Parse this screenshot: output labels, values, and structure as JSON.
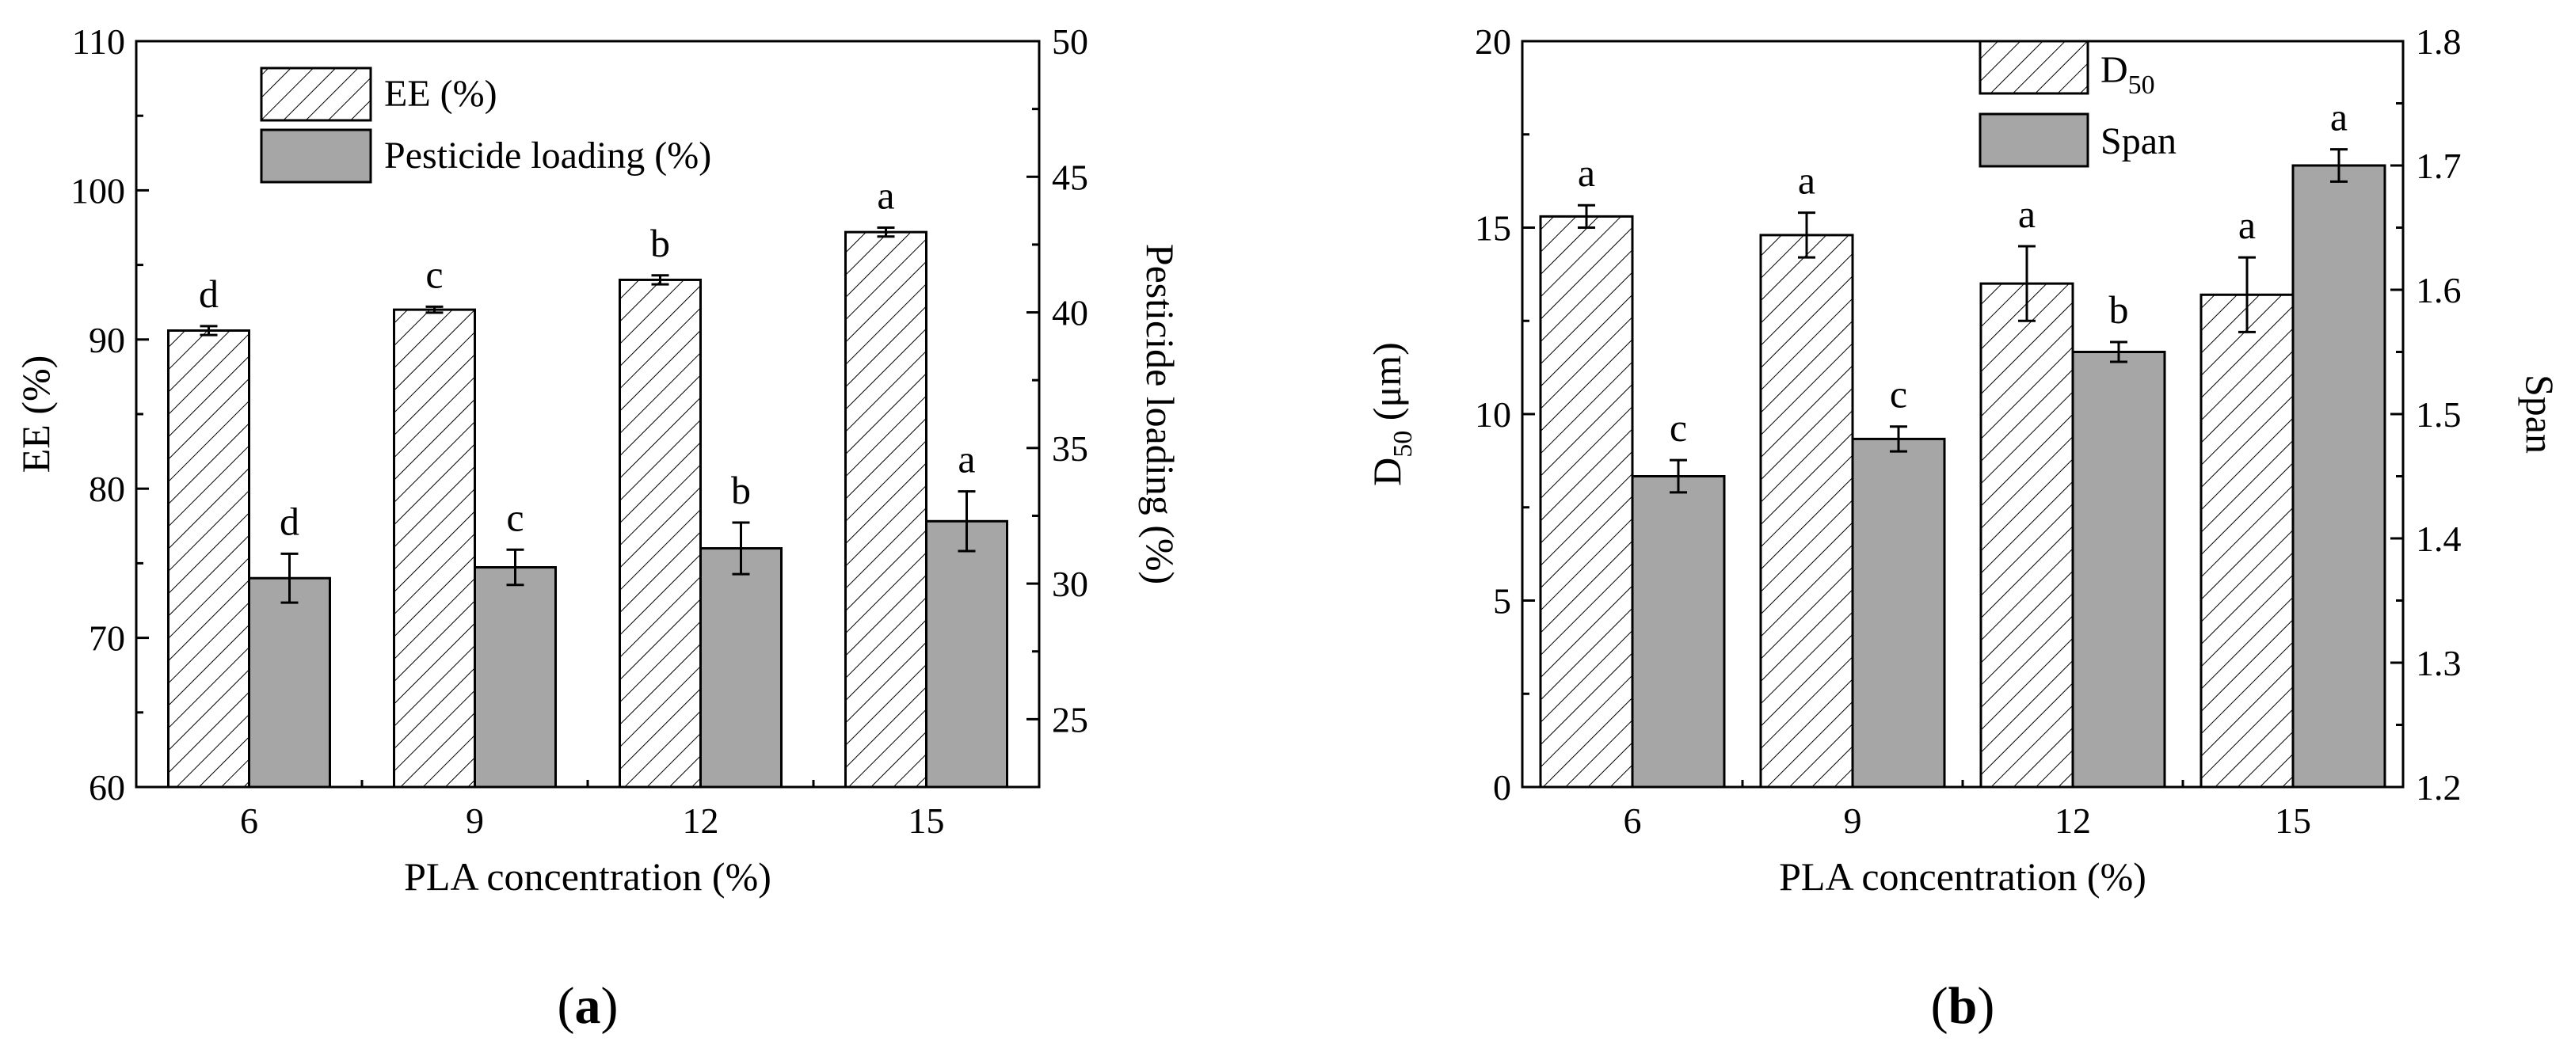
{
  "chart_data": [
    {
      "type": "bar",
      "panel_label": "a",
      "xlabel": "PLA concentration (%)",
      "categories": [
        "6",
        "9",
        "12",
        "15"
      ],
      "ylabel_left": "EE (%)",
      "ylabel_right": "Pesticide loading (%)",
      "ylim_left": [
        60,
        110
      ],
      "ylim_right": [
        22.5,
        50
      ],
      "yticks_left": [
        "60",
        "70",
        "80",
        "90",
        "100",
        "110"
      ],
      "yticks_right": [
        "25",
        "30",
        "35",
        "40",
        "45",
        "50"
      ],
      "legend_position": "top-left",
      "series": [
        {
          "name": "EE (%)",
          "axis": "left",
          "pattern": "hatched",
          "values": [
            90.6,
            92.0,
            94.0,
            97.2
          ],
          "errors": [
            0.3,
            0.2,
            0.3,
            0.3
          ],
          "labels": [
            "d",
            "c",
            "b",
            "a"
          ]
        },
        {
          "name": "Pesticide loading (%)",
          "axis": "right",
          "pattern": "gray",
          "values": [
            30.2,
            30.6,
            31.3,
            32.3
          ],
          "errors": [
            0.9,
            0.65,
            0.95,
            1.1
          ],
          "labels": [
            "d",
            "c",
            "b",
            "a"
          ]
        }
      ]
    },
    {
      "type": "bar",
      "panel_label": "b",
      "xlabel": "PLA concentration  (%)",
      "categories": [
        "6",
        "9",
        "12",
        "15"
      ],
      "ylabel_left_main": "D",
      "ylabel_left_sub": "50",
      "ylabel_left_unit": " (μm)",
      "ylabel_right": "Span",
      "ylim_left": [
        0,
        20
      ],
      "ylim_right": [
        1.2,
        1.8
      ],
      "yticks_left": [
        "0",
        "5",
        "10",
        "15",
        "20"
      ],
      "yticks_right": [
        "1.2",
        "1.3",
        "1.4",
        "1.5",
        "1.6",
        "1.7",
        "1.8"
      ],
      "legend_position": "top-center",
      "series": [
        {
          "name": "D",
          "name_sub": "50",
          "axis": "left",
          "pattern": "hatched",
          "values": [
            15.3,
            14.8,
            13.5,
            13.2
          ],
          "errors": [
            0.3,
            0.6,
            1.0,
            1.0
          ],
          "labels": [
            "a",
            "a",
            "a",
            "a"
          ]
        },
        {
          "name": "Span",
          "axis": "right",
          "pattern": "gray",
          "values": [
            1.45,
            1.48,
            1.55,
            1.7
          ],
          "errors": [
            0.013,
            0.01,
            0.008,
            0.013
          ],
          "labels": [
            "c",
            "c",
            "b",
            "a"
          ]
        }
      ]
    }
  ],
  "colors": {
    "hatched_fill": "#ffffff",
    "gray_fill": "#a6a6a6",
    "stroke": "#000000"
  }
}
